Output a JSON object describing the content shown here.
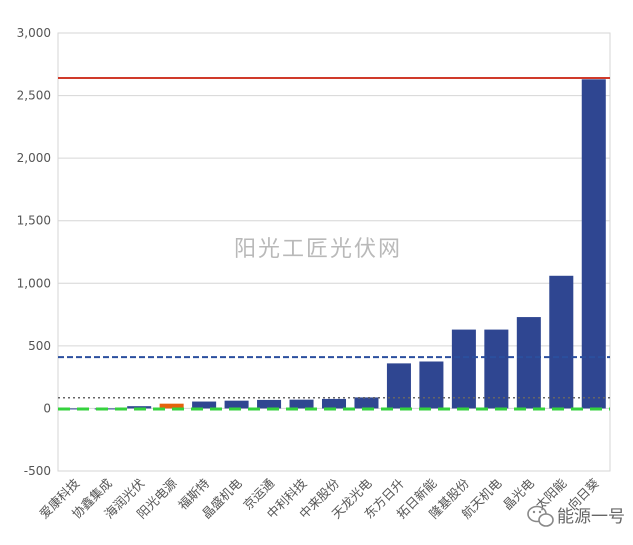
{
  "chart_data": {
    "type": "bar",
    "categories": [
      "爱康科技",
      "协鑫集成",
      "海润光伏",
      "阳光电源",
      "福斯特",
      "晶盛机电",
      "京运通",
      "中利科技",
      "中来股份",
      "天龙光电",
      "东方日升",
      "拓日新能",
      "隆基股份",
      "航天机电",
      "晶光电",
      "太阳能",
      "向日葵"
    ],
    "values": [
      -8,
      -5,
      18,
      38,
      55,
      62,
      68,
      70,
      76,
      88,
      360,
      375,
      630,
      630,
      730,
      1060,
      2630
    ],
    "highlight_index": 3,
    "ylim": [
      -500,
      3000
    ],
    "yticks": [
      -500,
      0,
      500,
      1000,
      1500,
      2000,
      2500,
      3000
    ],
    "ytick_labels": [
      "-500",
      "0",
      "500",
      "1,000",
      "1,500",
      "2,000",
      "2,500",
      "3,000"
    ],
    "reference_lines": [
      {
        "value": 2640,
        "style": "solid",
        "color": "#d03a2a"
      },
      {
        "value": 410,
        "style": "dashed",
        "color": "#2b4f9e"
      },
      {
        "value": 85,
        "style": "dotted",
        "color": "#666666"
      },
      {
        "value": -5,
        "style": "dashed",
        "color": "#35d23e"
      }
    ],
    "grid": true,
    "colors": {
      "bar": "#2f4691",
      "highlight": "#e4620c"
    }
  },
  "watermark": "阳光工匠光伏网",
  "brand": "能源一号",
  "brand_icon": "wechat-icon"
}
